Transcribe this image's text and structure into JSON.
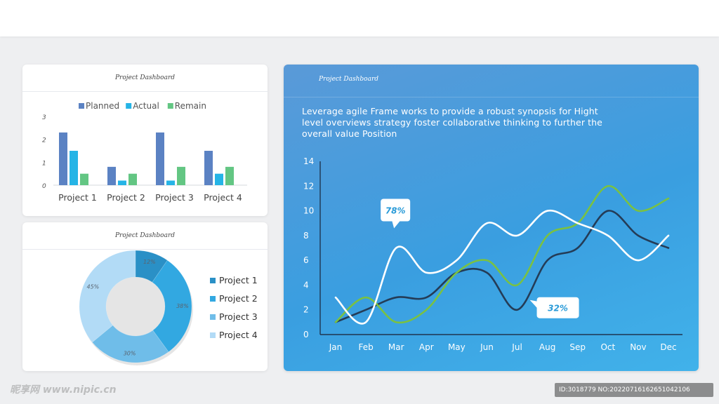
{
  "cards": {
    "bar_title": "Project Dashboard",
    "donut_title": "Project Dashboard",
    "line_title": "Project Dashboard"
  },
  "line_description": "Leverage agile Frame works to provide a robust synopsis for Hight level overviews strategy foster collaborative thinking to further the overall value Position",
  "watermark": {
    "left": "昵享网 www.nipic.cn",
    "right": "ID:3018779 NO:20220716162651042106"
  },
  "colors": {
    "planned": "#5b82c3",
    "actual": "#25b4e6",
    "remain": "#63c683",
    "donut": [
      "#2a90c6",
      "#32a8e1",
      "#6fbde9",
      "#b2dbf6"
    ],
    "line_dark": "#243c57",
    "line_green": "#7ac142",
    "line_white": "#ffffff"
  },
  "chart_data": [
    {
      "type": "bar",
      "title": "Project Dashboard",
      "categories": [
        "Project 1",
        "Project 2",
        "Project 3",
        "Project 4"
      ],
      "series": [
        {
          "name": "Planned",
          "values": [
            2.3,
            0.8,
            2.3,
            1.5
          ]
        },
        {
          "name": "Actual",
          "values": [
            1.5,
            0.2,
            0.2,
            0.5
          ]
        },
        {
          "name": "Remain",
          "values": [
            0.5,
            0.5,
            0.8,
            0.8
          ]
        }
      ],
      "yticks": [
        0,
        1,
        2,
        3
      ],
      "ylim": [
        0,
        3
      ],
      "legend": "top"
    },
    {
      "type": "pie",
      "title": "Project Dashboard",
      "labels": [
        "Project 1",
        "Project 2",
        "Project 3",
        "Project 4"
      ],
      "values": [
        12,
        38,
        30,
        45
      ],
      "value_labels": [
        "12%",
        "38%",
        "30%",
        "45%"
      ],
      "legend": "right"
    },
    {
      "type": "line",
      "title": "Project Dashboard",
      "categories": [
        "Jan",
        "Feb",
        "Mar",
        "Apr",
        "May",
        "Jun",
        "Jul",
        "Aug",
        "Sep",
        "Oct",
        "Nov",
        "Dec"
      ],
      "series": [
        {
          "values": [
            1,
            2,
            3,
            3,
            5,
            5,
            2,
            6,
            7,
            10,
            8,
            7
          ]
        },
        {
          "values": [
            1,
            3,
            1,
            2,
            5,
            6,
            4,
            8,
            9,
            12,
            10,
            11
          ]
        },
        {
          "values": [
            3,
            1,
            7,
            5,
            6,
            9,
            8,
            10,
            9,
            8,
            6,
            8
          ]
        }
      ],
      "yticks": [
        0,
        2,
        4,
        6,
        8,
        10,
        12,
        14
      ],
      "ylim": [
        0,
        14
      ],
      "callouts": [
        {
          "text": "78%",
          "x": "Mar",
          "y": 7
        },
        {
          "text": "32%",
          "x": "Jul",
          "y": 2
        }
      ],
      "grid": false
    }
  ]
}
